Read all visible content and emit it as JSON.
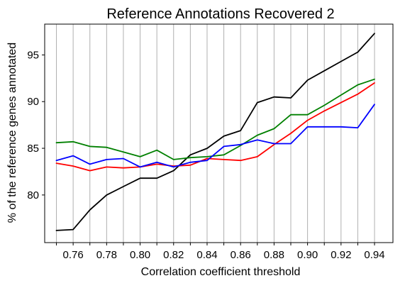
{
  "chart_data": {
    "type": "line",
    "title": "Reference Annotations Recovered 2",
    "xlabel": "Correlation coefficient threshold",
    "ylabel": "% of the reference genes annotated",
    "xlim": [
      0.743,
      0.951
    ],
    "ylim": [
      74.9,
      98.3
    ],
    "grid": "vertical",
    "legend": "none",
    "x": [
      0.75,
      0.76,
      0.77,
      0.78,
      0.79,
      0.8,
      0.81,
      0.82,
      0.83,
      0.84,
      0.85,
      0.86,
      0.87,
      0.88,
      0.89,
      0.9,
      0.91,
      0.92,
      0.93,
      0.94
    ],
    "x_ticks": [
      0.75,
      0.76,
      0.77,
      0.78,
      0.79,
      0.8,
      0.81,
      0.82,
      0.83,
      0.84,
      0.85,
      0.86,
      0.87,
      0.88,
      0.89,
      0.9,
      0.91,
      0.92,
      0.93,
      0.94
    ],
    "x_tick_labels": [
      "0.76",
      "0.78",
      "0.80",
      "0.82",
      "0.84",
      "0.86",
      "0.88",
      "0.90",
      "0.92",
      "0.94"
    ],
    "x_tick_label_values": [
      0.76,
      0.78,
      0.8,
      0.82,
      0.84,
      0.86,
      0.88,
      0.9,
      0.92,
      0.94
    ],
    "y_ticks": [
      80,
      85,
      90,
      95
    ],
    "y_tick_labels": [
      "80",
      "85",
      "90",
      "95"
    ],
    "series": [
      {
        "color": "#000000",
        "values": [
          76.2,
          76.3,
          78.4,
          80.0,
          80.9,
          81.8,
          81.8,
          82.6,
          84.3,
          85.0,
          86.3,
          86.9,
          89.9,
          90.5,
          90.4,
          92.3,
          93.3,
          94.3,
          95.3,
          97.3
        ]
      },
      {
        "color": "#008000",
        "values": [
          85.6,
          85.7,
          85.2,
          85.1,
          84.6,
          84.1,
          84.8,
          83.8,
          84.0,
          84.1,
          84.3,
          85.3,
          86.4,
          87.1,
          88.6,
          88.6,
          89.6,
          90.7,
          91.8,
          92.4
        ]
      },
      {
        "color": "#ff0000",
        "values": [
          83.4,
          83.1,
          82.6,
          83.0,
          82.9,
          83.0,
          83.3,
          83.1,
          83.2,
          83.9,
          83.8,
          83.7,
          84.1,
          85.4,
          86.6,
          88.0,
          89.0,
          89.9,
          90.8,
          92.0
        ]
      },
      {
        "color": "#0000ff",
        "values": [
          83.7,
          84.2,
          83.3,
          83.8,
          83.9,
          83.0,
          83.5,
          83.0,
          83.5,
          83.7,
          85.2,
          85.4,
          85.9,
          85.5,
          85.5,
          87.3,
          87.3,
          87.3,
          87.2,
          89.7
        ]
      }
    ]
  }
}
